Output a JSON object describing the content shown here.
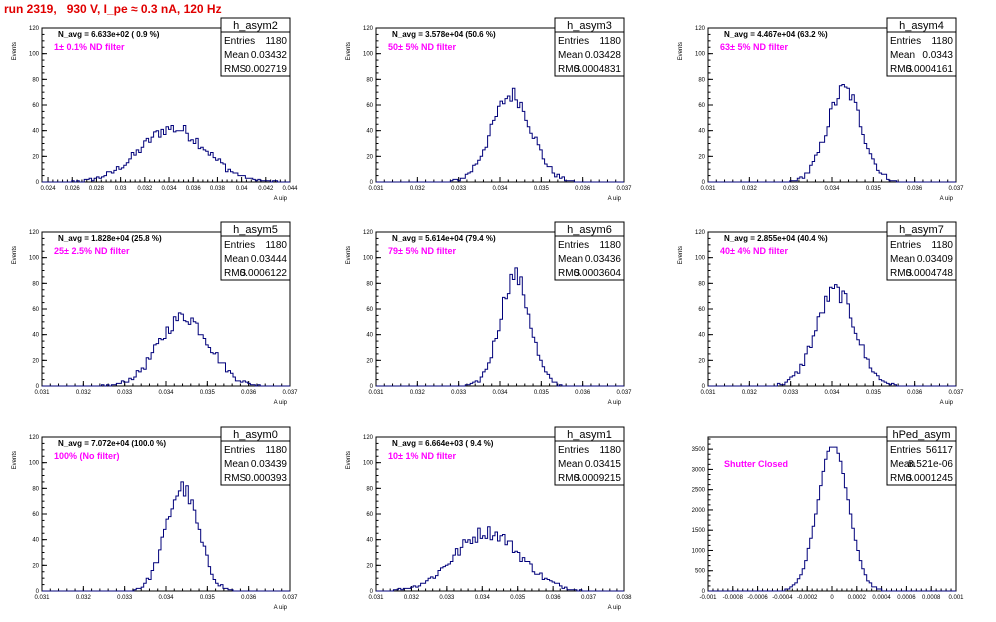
{
  "page": {
    "title": "run 2319,   930 V, I_pe ≈ 0.3 nA, 120 Hz",
    "title_color": "#e00000"
  },
  "colors": {
    "hist": "#00007a",
    "note": "#ff00ff"
  },
  "chart_data": [
    {
      "type": "histogram",
      "name": "h_asym2",
      "ylabel": "Events",
      "xlabel": "A uip",
      "xlim": [
        0.0235,
        0.044
      ],
      "ylim": [
        0,
        120
      ],
      "xticks": [
        "0.024",
        "0.026",
        "0.028",
        "0.03",
        "0.032",
        "0.034",
        "0.036",
        "0.038",
        "0.04",
        "0.042",
        "0.044"
      ],
      "yticks": [
        "0",
        "20",
        "40",
        "60",
        "80",
        "100",
        "120"
      ],
      "n_avg": "N_avg = 6.633e+02 ( 0.9 %)",
      "note": "1± 0.1% ND filter",
      "stats": {
        "entries": "1180",
        "mean": "0.03432",
        "rms": "0.002719"
      },
      "shape": {
        "type": "gauss",
        "mean": 0.03432,
        "rms": 0.002719,
        "peak": 42
      }
    },
    {
      "type": "histogram",
      "name": "h_asym3",
      "ylabel": "Events",
      "xlabel": "A uip",
      "xlim": [
        0.031,
        0.037
      ],
      "ylim": [
        0,
        120
      ],
      "xticks": [
        "0.031",
        "0.032",
        "0.033",
        "0.034",
        "0.035",
        "0.036",
        "0.037"
      ],
      "yticks": [
        "0",
        "20",
        "40",
        "60",
        "80",
        "100",
        "120"
      ],
      "n_avg": "N_avg = 3.578e+04 (50.6 %)",
      "note": "50± 5% ND filter",
      "stats": {
        "entries": "1180",
        "mean": "0.03428",
        "rms": "0.0004831"
      },
      "shape": {
        "type": "gauss",
        "mean": 0.03428,
        "rms": 0.0004831,
        "peak": 68
      }
    },
    {
      "type": "histogram",
      "name": "h_asym4",
      "ylabel": "Events",
      "xlabel": "A uip",
      "xlim": [
        0.031,
        0.037
      ],
      "ylim": [
        0,
        120
      ],
      "xticks": [
        "0.031",
        "0.032",
        "0.033",
        "0.034",
        "0.035",
        "0.036",
        "0.037"
      ],
      "yticks": [
        "0",
        "20",
        "40",
        "60",
        "80",
        "100",
        "120"
      ],
      "n_avg": "N_avg = 4.467e+04 (63.2 %)",
      "note": "63± 5% ND filter",
      "stats": {
        "entries": "1180",
        "mean": "0.0343",
        "rms": "0.0004161"
      },
      "shape": {
        "type": "gauss",
        "mean": 0.0343,
        "rms": 0.0004161,
        "peak": 72
      }
    },
    {
      "type": "histogram",
      "name": "h_asym5",
      "ylabel": "Events",
      "xlabel": "A uip",
      "xlim": [
        0.031,
        0.037
      ],
      "ylim": [
        0,
        120
      ],
      "xticks": [
        "0.031",
        "0.032",
        "0.033",
        "0.034",
        "0.035",
        "0.036",
        "0.037"
      ],
      "yticks": [
        "0",
        "20",
        "40",
        "60",
        "80",
        "100",
        "120"
      ],
      "n_avg": "N_avg = 1.828e+04 (25.8 %)",
      "note": "25± 2.5% ND filter",
      "stats": {
        "entries": "1180",
        "mean": "0.03444",
        "rms": "0.0006122"
      },
      "shape": {
        "type": "gauss",
        "mean": 0.03444,
        "rms": 0.0006122,
        "peak": 54
      }
    },
    {
      "type": "histogram",
      "name": "h_asym6",
      "ylabel": "Events",
      "xlabel": "A uip",
      "xlim": [
        0.031,
        0.037
      ],
      "ylim": [
        0,
        120
      ],
      "xticks": [
        "0.031",
        "0.032",
        "0.033",
        "0.034",
        "0.035",
        "0.036",
        "0.037"
      ],
      "yticks": [
        "0",
        "20",
        "40",
        "60",
        "80",
        "100",
        "120"
      ],
      "n_avg": "N_avg = 5.614e+04 (79.4 %)",
      "note": "79± 5% ND filter",
      "stats": {
        "entries": "1180",
        "mean": "0.03436",
        "rms": "0.0003604"
      },
      "shape": {
        "type": "gauss",
        "mean": 0.03436,
        "rms": 0.0003604,
        "peak": 86
      }
    },
    {
      "type": "histogram",
      "name": "h_asym7",
      "ylabel": "Events",
      "xlabel": "A uip",
      "xlim": [
        0.031,
        0.037
      ],
      "ylim": [
        0,
        120
      ],
      "xticks": [
        "0.031",
        "0.032",
        "0.033",
        "0.034",
        "0.035",
        "0.036",
        "0.037"
      ],
      "yticks": [
        "0",
        "20",
        "40",
        "60",
        "80",
        "100",
        "120"
      ],
      "n_avg": "N_avg = 2.855e+04 (40.4 %)",
      "note": "40± 4% ND filter",
      "stats": {
        "entries": "1180",
        "mean": "0.03409",
        "rms": "0.0004748"
      },
      "shape": {
        "type": "gauss",
        "mean": 0.03409,
        "rms": 0.0004748,
        "peak": 74
      }
    },
    {
      "type": "histogram",
      "name": "h_asym0",
      "ylabel": "Events",
      "xlabel": "A uip",
      "xlim": [
        0.031,
        0.037
      ],
      "ylim": [
        0,
        120
      ],
      "xticks": [
        "0.031",
        "0.032",
        "0.033",
        "0.034",
        "0.035",
        "0.036",
        "0.037"
      ],
      "yticks": [
        "0",
        "20",
        "40",
        "60",
        "80",
        "100",
        "120"
      ],
      "n_avg": "N_avg = 7.072e+04 (100.0 %)",
      "note": "100% (No filter)",
      "stats": {
        "entries": "1180",
        "mean": "0.03439",
        "rms": "0.000393"
      },
      "shape": {
        "type": "gauss",
        "mean": 0.03439,
        "rms": 0.000393,
        "peak": 80
      }
    },
    {
      "type": "histogram",
      "name": "h_asym1",
      "ylabel": "Events",
      "xlabel": "A uip",
      "xlim": [
        0.031,
        0.038
      ],
      "ylim": [
        0,
        120
      ],
      "xticks": [
        "0.031",
        "0.032",
        "0.033",
        "0.034",
        "0.035",
        "0.036",
        "0.037",
        "0.038"
      ],
      "yticks": [
        "0",
        "20",
        "40",
        "60",
        "80",
        "100",
        "120"
      ],
      "n_avg": "N_avg = 6.664e+03 ( 9.4 %)",
      "note": "10± 1% ND filter",
      "stats": {
        "entries": "1180",
        "mean": "0.03415",
        "rms": "0.0009215"
      },
      "shape": {
        "type": "gauss",
        "mean": 0.03415,
        "rms": 0.0009215,
        "peak": 46
      }
    },
    {
      "type": "histogram",
      "name": "hPed_asym",
      "ylabel": "",
      "xlabel": "",
      "xlim": [
        -0.001,
        0.001
      ],
      "ylim": [
        0,
        3800
      ],
      "xticks": [
        "-0.001",
        "-0.0008",
        "-0.0006",
        "-0.0004",
        "-0.0002",
        "0",
        "0.0002",
        "0.0004",
        "0.0006",
        "0.0008",
        "0.001"
      ],
      "yticks": [
        "0",
        "500",
        "1000",
        "1500",
        "2000",
        "2500",
        "3000",
        "3500"
      ],
      "n_avg": "",
      "note": "Shutter Closed",
      "stats": {
        "entries": "56117",
        "mean": "8.521e-06",
        "rms": "0.0001245"
      },
      "shape": {
        "type": "gauss",
        "mean": 8.5e-06,
        "rms": 0.0001245,
        "peak": 3580
      }
    }
  ]
}
